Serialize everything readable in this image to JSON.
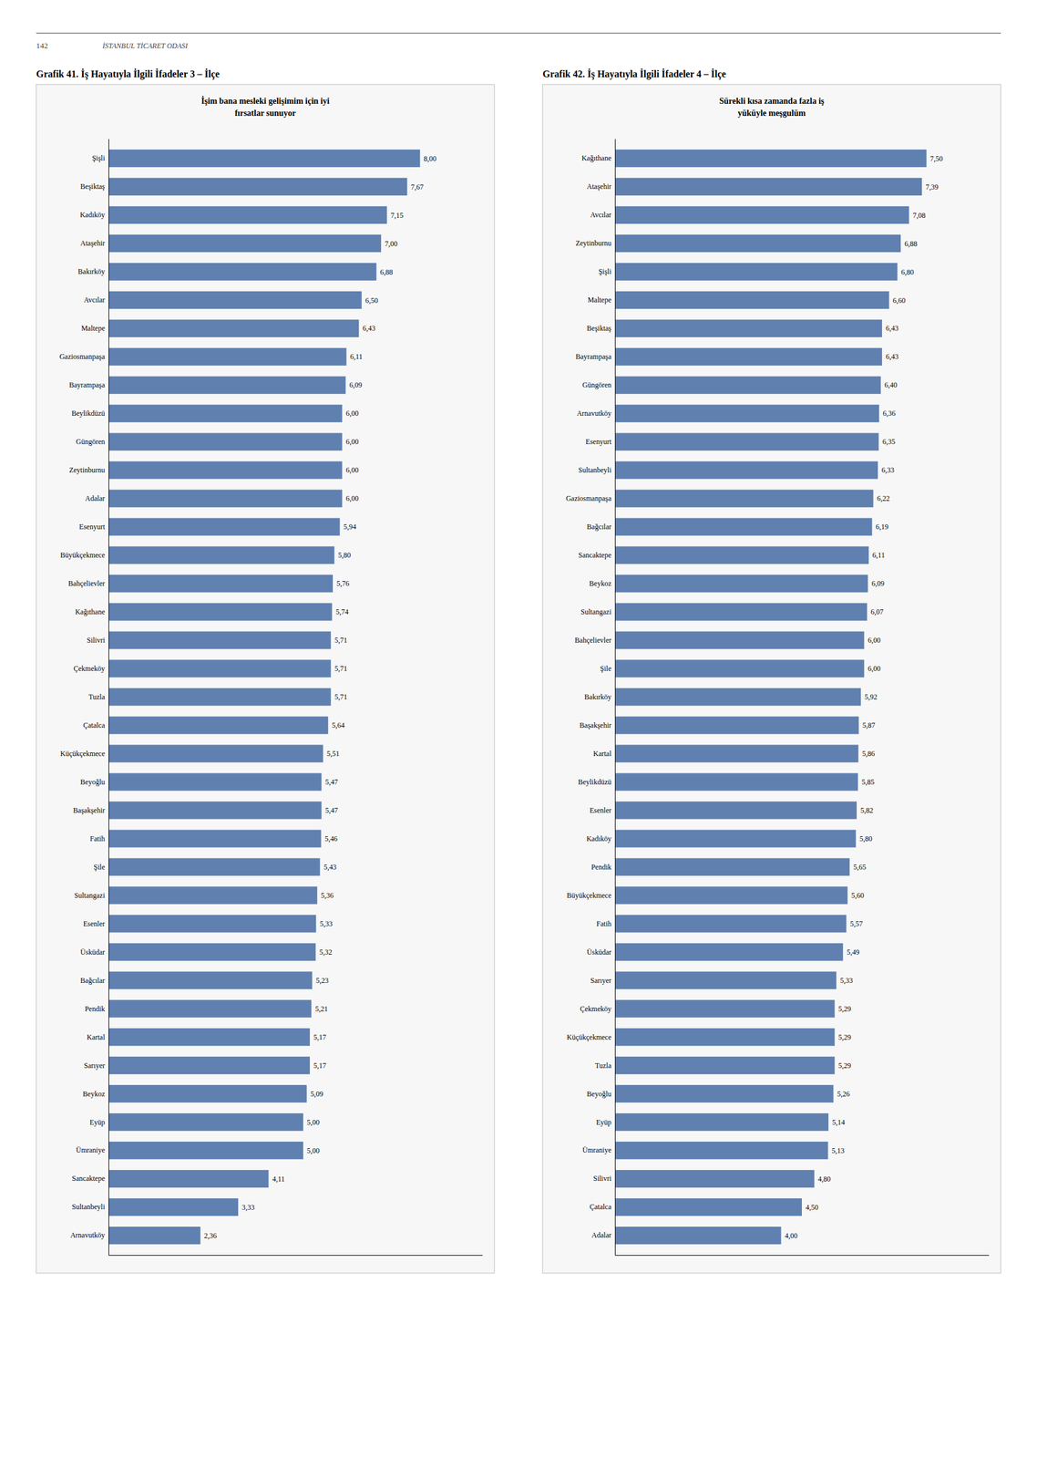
{
  "page_number": "142",
  "page_header": "İSTANBUL TİCARET ODASI",
  "chart_data": [
    {
      "type": "bar",
      "orientation": "horizontal",
      "title": "Grafik 41. İş Hayatıyla İlgili İfadeler 3 – İlçe",
      "subtitle": "İşim bana mesleki gelişimim için iyi\nfırsatlar sunuyor",
      "categories": [
        "Şişli",
        "Beşiktaş",
        "Kadıköy",
        "Ataşehir",
        "Bakırköy",
        "Avcılar",
        "Maltepe",
        "Gaziosmanpaşa",
        "Bayrampaşa",
        "Beylikdüzü",
        "Güngören",
        "Zeytinburnu",
        "Adalar",
        "Esenyurt",
        "Büyükçekmece",
        "Bahçelievler",
        "Kağıthane",
        "Silivri",
        "Çekmeköy",
        "Tuzla",
        "Çatalca",
        "Küçükçekmece",
        "Beyоğlu",
        "Başakşehir",
        "Fatih",
        "Şile",
        "Sultangazi",
        "Esenler",
        "Üsküdar",
        "Bağcılar",
        "Pendik",
        "Kartal",
        "Sarıyer",
        "Beykoz",
        "Eyüp",
        "Ümraniye",
        "Sancaktepe",
        "Sultanbeyli",
        "Arnavutköy"
      ],
      "values": [
        8.0,
        7.67,
        7.15,
        7.0,
        6.88,
        6.5,
        6.43,
        6.11,
        6.09,
        6.0,
        6.0,
        6.0,
        6.0,
        5.94,
        5.8,
        5.76,
        5.74,
        5.71,
        5.71,
        5.71,
        5.64,
        5.51,
        5.47,
        5.47,
        5.46,
        5.43,
        5.36,
        5.33,
        5.32,
        5.23,
        5.21,
        5.17,
        5.17,
        5.09,
        5.0,
        5.0,
        4.11,
        3.33,
        2.36
      ],
      "value_labels": [
        "8,00",
        "7,67",
        "7,15",
        "7,00",
        "6,88",
        "6,50",
        "6,43",
        "6,11",
        "6,09",
        "6,00",
        "6,00",
        "6,00",
        "6,00",
        "5,94",
        "5,80",
        "5,76",
        "5,74",
        "5,71",
        "5,71",
        "5,71",
        "5,64",
        "5,51",
        "5,47",
        "5,47",
        "5,46",
        "5,43",
        "5,36",
        "5,33",
        "5,32",
        "5,23",
        "5,21",
        "5,17",
        "5,17",
        "5,09",
        "5,00",
        "5,00",
        "4,11",
        "3,33",
        "2,36"
      ],
      "color": "#6080b0",
      "xlim": [
        0,
        9.6
      ],
      "xticks": [],
      "grid": false,
      "data_labels": true,
      "tick_labels": "y"
    },
    {
      "type": "bar",
      "orientation": "horizontal",
      "title": "Grafik 42. İş Hayatıyla İlgili İfadeler 4 – İlçe",
      "subtitle": "Sürekli kısa zamanda fazla iş\nyüküyle meşgulüm",
      "categories": [
        "Kağıthane",
        "Ataşehir",
        "Avcılar",
        "Zeytinburnu",
        "Şişli",
        "Maltepe",
        "Beşiktaş",
        "Bayrampaşa",
        "Güngören",
        "Arnavutköy",
        "Esenyurt",
        "Sultanbeyli",
        "Gaziosmanpaşa",
        "Bağcılar",
        "Sancaktepe",
        "Beykoz",
        "Sultangazi",
        "Bahçelievler",
        "Şile",
        "Bakırköy",
        "Başakşehir",
        "Kartal",
        "Beylikdüzü",
        "Esenler",
        "Kadıköy",
        "Pendik",
        "Büyükçekmece",
        "Fatih",
        "Üsküdar",
        "Sarıyer",
        "Çekmeköy",
        "Küçükçekmece",
        "Tuzla",
        "Beyоğlu",
        "Eyüp",
        "Ümraniye",
        "Silivri",
        "Çatalca",
        "Adalar"
      ],
      "values": [
        7.5,
        7.39,
        7.08,
        6.88,
        6.8,
        6.6,
        6.43,
        6.43,
        6.4,
        6.36,
        6.35,
        6.33,
        6.22,
        6.19,
        6.11,
        6.09,
        6.07,
        6.0,
        6.0,
        5.92,
        5.87,
        5.86,
        5.85,
        5.82,
        5.8,
        5.65,
        5.6,
        5.57,
        5.49,
        5.33,
        5.29,
        5.29,
        5.29,
        5.26,
        5.14,
        5.13,
        4.8,
        4.5,
        4.0
      ],
      "value_labels": [
        "7,50",
        "7,39",
        "7,08",
        "6,88",
        "6,80",
        "6,60",
        "6,43",
        "6,43",
        "6,40",
        "6,36",
        "6,35",
        "6,33",
        "6,22",
        "6,19",
        "6,11",
        "6,09",
        "6,07",
        "6,00",
        "6,00",
        "5,92",
        "5,87",
        "5,86",
        "5,85",
        "5,82",
        "5,80",
        "5,65",
        "5,60",
        "5,57",
        "5,49",
        "5,33",
        "5,29",
        "5,29",
        "5,29",
        "5,26",
        "5,14",
        "5,13",
        "4,80",
        "4,50",
        "4,00"
      ],
      "color": "#6080b0",
      "xlim": [
        0,
        9.0
      ],
      "xticks": [],
      "grid": false,
      "data_labels": true,
      "tick_labels": "y"
    }
  ]
}
